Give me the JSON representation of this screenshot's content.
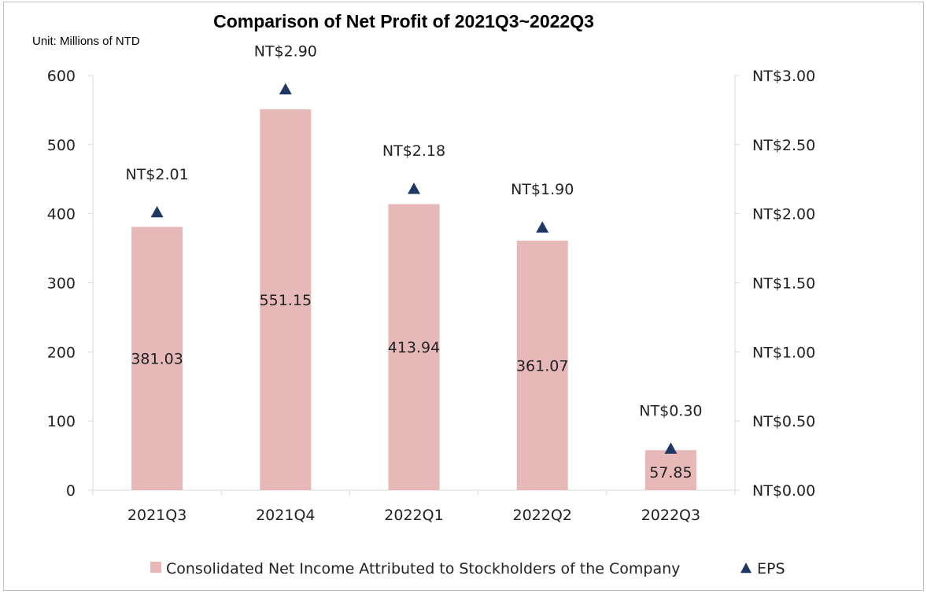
{
  "chart_data": {
    "type": "bar",
    "title": "Comparison of Net Profit of 2021Q3~2022Q3",
    "unit_note": "Unit: Millions of NTD",
    "categories": [
      "2021Q3",
      "2021Q4",
      "2022Q1",
      "2022Q2",
      "2022Q3"
    ],
    "series": [
      {
        "name": "Consolidated Net Income Attributed to Stockholders of the Company",
        "type": "bar",
        "axis": "left",
        "color": "#e6b8b7",
        "values": [
          381.03,
          551.15,
          413.94,
          361.07,
          57.85
        ],
        "labels": [
          "381.03",
          "551.15",
          "413.94",
          "361.07",
          "57.85"
        ]
      },
      {
        "name": "EPS",
        "type": "scatter",
        "marker": "triangle",
        "axis": "right",
        "color": "#1f3864",
        "values": [
          2.01,
          2.9,
          2.18,
          1.9,
          0.3
        ],
        "labels": [
          "NT$2.01",
          "NT$2.90",
          "NT$2.18",
          "NT$1.90",
          "NT$0.30"
        ]
      }
    ],
    "y_left": {
      "ylim": [
        0,
        600
      ],
      "ticks": [
        0,
        100,
        200,
        300,
        400,
        500,
        600
      ],
      "tick_labels": [
        "0",
        "100",
        "200",
        "300",
        "400",
        "500",
        "600"
      ]
    },
    "y_right": {
      "ylim": [
        0,
        3
      ],
      "ticks": [
        0,
        0.5,
        1,
        1.5,
        2,
        2.5,
        3
      ],
      "tick_labels": [
        "NT$0.00",
        "NT$0.50",
        "NT$1.00",
        "NT$1.50",
        "NT$2.00",
        "NT$2.50",
        "NT$3.00"
      ]
    },
    "grid": false,
    "legend_position": "bottom",
    "axis_color": "#d9d9d9"
  }
}
